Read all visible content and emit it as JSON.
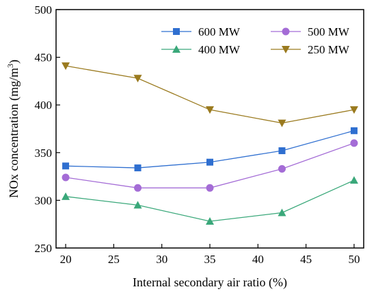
{
  "chart_data": {
    "type": "line",
    "xlabel": "Internal secondary air ratio (%)",
    "ylabel_main": "NOx concentration (mg/m",
    "ylabel_sup": "3",
    "ylabel_close": ")",
    "xlim": [
      19,
      51
    ],
    "ylim": [
      250,
      500
    ],
    "xticks": [
      20,
      25,
      30,
      35,
      40,
      45,
      50
    ],
    "yticks": [
      250,
      300,
      350,
      400,
      450,
      500
    ],
    "x": [
      20,
      27.5,
      35,
      42.5,
      50
    ],
    "legend_position": "top-right",
    "series": [
      {
        "name": "600 MW",
        "color": "#2f6fd0",
        "marker": "square",
        "values": [
          336,
          334,
          340,
          352,
          373
        ]
      },
      {
        "name": "500 MW",
        "color": "#a46cd6",
        "marker": "circle",
        "values": [
          324,
          313,
          313,
          333,
          360
        ]
      },
      {
        "name": "400 MW",
        "color": "#3aa87a",
        "marker": "triangle-up",
        "values": [
          304,
          295,
          278,
          287,
          321
        ]
      },
      {
        "name": "250 MW",
        "color": "#9a7a1e",
        "marker": "triangle-down",
        "values": [
          441,
          428,
          395,
          381,
          395
        ]
      }
    ]
  }
}
